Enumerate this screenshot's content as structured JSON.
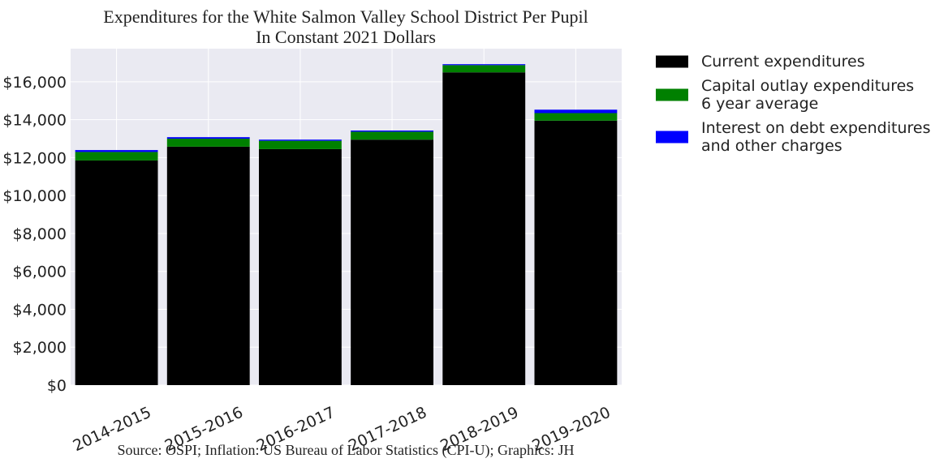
{
  "chart_data": {
    "type": "bar",
    "stacked": true,
    "title": "Expenditures for the White Salmon Valley School District Per Pupil",
    "subtitle": "In Constant 2021 Dollars",
    "source": "Source: OSPI; Inflation: US Bureau of Labor Statistics (CPI-U); Graphics: JH",
    "xlabel": "",
    "ylabel": "",
    "ylim": [
      0,
      17750
    ],
    "y_ticks": [
      0,
      2000,
      4000,
      6000,
      8000,
      10000,
      12000,
      14000,
      16000
    ],
    "y_tick_labels": [
      "$0",
      "$2,000",
      "$4,000",
      "$6,000",
      "$8,000",
      "$10,000",
      "$12,000",
      "$14,000",
      "$16,000"
    ],
    "categories": [
      "2014-2015",
      "2015-2016",
      "2016-2017",
      "2017-2018",
      "2018-2019",
      "2019-2020"
    ],
    "series": [
      {
        "name": "Current expenditures",
        "color": "#000000",
        "values": [
          11850,
          12580,
          12450,
          12950,
          16500,
          13950
        ]
      },
      {
        "name": "Capital outlay expenditures 6 year average",
        "color": "#008000",
        "values": [
          450,
          420,
          440,
          420,
          380,
          400
        ]
      },
      {
        "name": "Interest on debt expenditures and other charges",
        "color": "#0000ff",
        "values": [
          100,
          80,
          60,
          60,
          50,
          180
        ]
      }
    ],
    "legend": {
      "placement": "right-outside-top",
      "entries": [
        [
          "Current expenditures"
        ],
        [
          "Capital outlay expenditures",
          "6 year average"
        ],
        [
          "Interest on debt expenditures",
          "and other charges"
        ]
      ]
    },
    "grid": true,
    "background_color": "#eaeaf2",
    "grid_color": "#ffffff"
  }
}
